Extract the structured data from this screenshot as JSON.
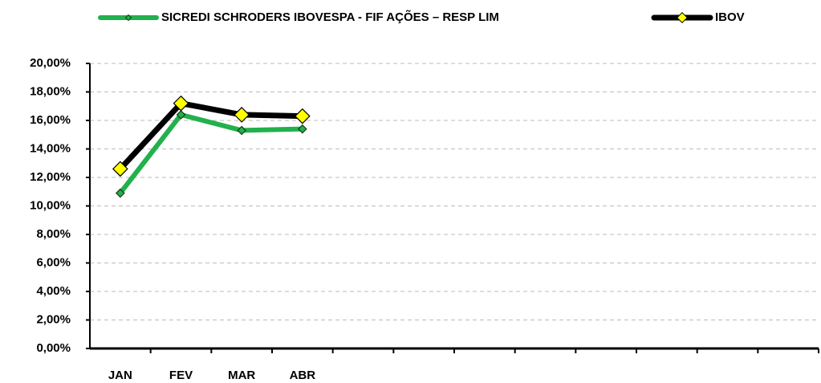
{
  "chart_data": {
    "type": "line",
    "categories": [
      "JAN",
      "FEV",
      "MAR",
      "ABR",
      null,
      null,
      null,
      null,
      null,
      null,
      null,
      null
    ],
    "series": [
      {
        "name": "SICREDI SCHRODERS IBOVESPA - FIF AÇÕES – RESP LIM",
        "color": "#22b14c",
        "values": [
          10.9,
          16.4,
          15.3,
          15.4,
          null,
          null,
          null,
          null,
          null,
          null,
          null,
          null
        ]
      },
      {
        "name": "IBOV",
        "color": "#000000",
        "values": [
          12.6,
          17.2,
          16.4,
          16.3,
          null,
          null,
          null,
          null,
          null,
          null,
          null,
          null
        ]
      }
    ],
    "ylim": [
      0,
      20
    ],
    "yticks": [
      {
        "value": 0,
        "label": "0,00%"
      },
      {
        "value": 2,
        "label": "2,00%"
      },
      {
        "value": 4,
        "label": "4,00%"
      },
      {
        "value": 6,
        "label": "6,00%"
      },
      {
        "value": 8,
        "label": "8,00%"
      },
      {
        "value": 10,
        "label": "10,00%"
      },
      {
        "value": 12,
        "label": "12,00%"
      },
      {
        "value": 14,
        "label": "14,00%"
      },
      {
        "value": 16,
        "label": "16,00%"
      },
      {
        "value": 18,
        "label": "18,00%"
      },
      {
        "value": 20,
        "label": "20,00%"
      }
    ],
    "grid": true,
    "legend": "top"
  }
}
